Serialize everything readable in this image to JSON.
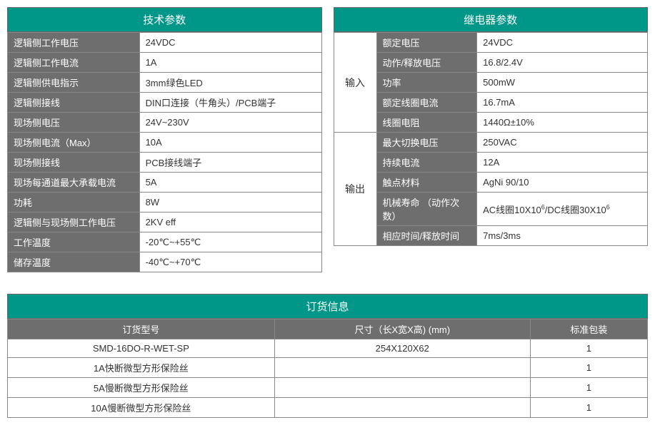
{
  "colors": {
    "header_bg": "#009688",
    "header_fg": "#ffffff",
    "label_bg": "#6e6e6e",
    "label_fg": "#ffffff",
    "border": "#888888",
    "value_bg": "#ffffff",
    "value_fg": "#333333"
  },
  "tech": {
    "title": "技术参数",
    "rows": [
      {
        "label": "逻辑侧工作电压",
        "value": "24VDC"
      },
      {
        "label": "逻辑侧工作电流",
        "value": "1A"
      },
      {
        "label": "逻辑侧供电指示",
        "value": "3mm绿色LED"
      },
      {
        "label": "逻辑侧接线",
        "value": "DIN口连接（牛角头）/PCB端子"
      },
      {
        "label": "现场侧电压",
        "value": "24V~230V"
      },
      {
        "label": "现场侧电流（Max）",
        "value": "10A"
      },
      {
        "label": "现场侧接线",
        "value": "PCB接线端子"
      },
      {
        "label": "现场每通道最大承载电流",
        "value": "5A"
      },
      {
        "label": " 功耗",
        "value": "8W"
      },
      {
        "label": "逻辑侧与现场侧工作电压",
        "value": "2KV eff"
      },
      {
        "label": "工作温度",
        "value": "-20℃~+55℃"
      },
      {
        "label": "储存温度",
        "value": "-40℃~+70℃"
      }
    ]
  },
  "relay": {
    "title": "继电器参数",
    "groups": [
      {
        "name": "输入",
        "rows": [
          {
            "label": "额定电压",
            "value": "24VDC"
          },
          {
            "label": "动作/释放电压",
            "value": "16.8/2.4V"
          },
          {
            "label": "功率",
            "value": "500mW"
          },
          {
            "label": "额定线圈电流",
            "value": "16.7mA"
          },
          {
            "label": "线圈电阻",
            "value": "1440Ω±10%"
          }
        ]
      },
      {
        "name": "输出",
        "rows": [
          {
            "label": "最大切换电压",
            "value": "250VAC"
          },
          {
            "label": "持续电流",
            "value": "12A"
          },
          {
            "label": "触点材料",
            "value": "AgNi 90/10"
          },
          {
            "label": "机械寿命 （动作次数）",
            "value_html": "AC线圈10X10<sup>6</sup>/DC线圈30X10<sup>6</sup>"
          },
          {
            "label": "相应时间/释放时间",
            "value": "7ms/3ms"
          }
        ]
      }
    ]
  },
  "order": {
    "title": "订货信息",
    "columns": [
      "订货型号",
      "尺寸（长X宽X高) (mm)",
      "标准包装"
    ],
    "rows": [
      [
        "SMD-16DO-R-WET-SP",
        "254X120X62",
        "1"
      ],
      [
        "1A快断微型方形保险丝",
        "",
        "1"
      ],
      [
        "5A慢断微型方形保险丝",
        "",
        "1"
      ],
      [
        "10A慢断微型方形保险丝",
        "",
        "1"
      ]
    ]
  }
}
